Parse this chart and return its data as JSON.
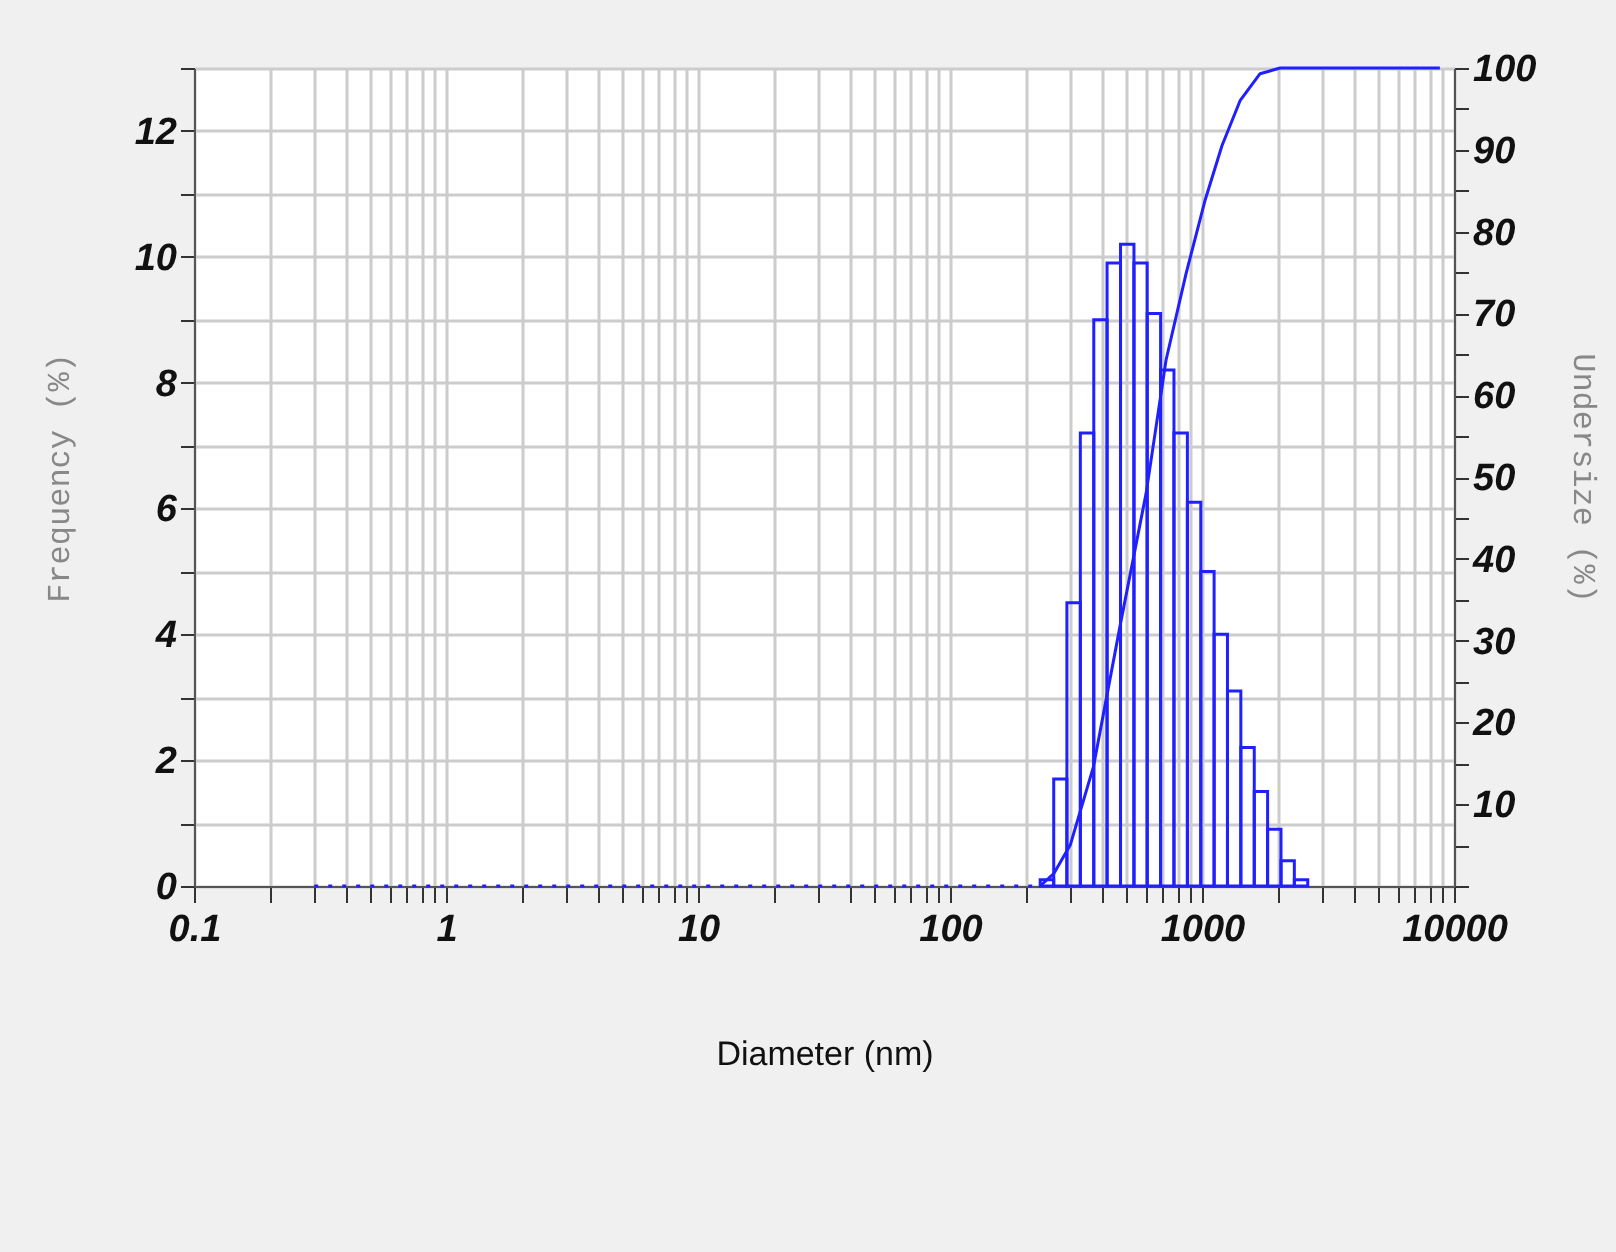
{
  "chart_data": {
    "type": "histogram",
    "xlabel": "Diameter (nm)",
    "ylabel": "Frequency (%)",
    "y2label": "Undersize (%)",
    "log": "x",
    "grid": true,
    "xlim": [
      0.1,
      10000
    ],
    "xticks": [
      0.1,
      {
        "value": 0.2,
        "label": null
      },
      {
        "value": 0.3,
        "label": null
      },
      {
        "value": 0.4,
        "label": null
      },
      {
        "value": 0.5,
        "label": null
      },
      {
        "value": 0.6,
        "label": null
      },
      {
        "value": 0.7,
        "label": null
      },
      {
        "value": 0.8,
        "label": null
      },
      {
        "value": 0.9,
        "label": null
      },
      1,
      {
        "value": 2,
        "label": null
      },
      {
        "value": 3,
        "label": null
      },
      {
        "value": 4,
        "label": null
      },
      {
        "value": 5,
        "label": null
      },
      {
        "value": 6,
        "label": null
      },
      {
        "value": 7,
        "label": null
      },
      {
        "value": 8,
        "label": null
      },
      {
        "value": 9,
        "label": null
      },
      10,
      {
        "value": 20,
        "label": null
      },
      {
        "value": 30,
        "label": null
      },
      {
        "value": 40,
        "label": null
      },
      {
        "value": 50,
        "label": null
      },
      {
        "value": 60,
        "label": null
      },
      {
        "value": 70,
        "label": null
      },
      {
        "value": 80,
        "label": null
      },
      {
        "value": 90,
        "label": null
      },
      100,
      {
        "value": 200,
        "label": null
      },
      {
        "value": 300,
        "label": null
      },
      {
        "value": 400,
        "label": null
      },
      {
        "value": 500,
        "label": null
      },
      {
        "value": 600,
        "label": null
      },
      {
        "value": 700,
        "label": null
      },
      {
        "value": 800,
        "label": null
      },
      {
        "value": 900,
        "label": null
      },
      1000,
      {
        "value": 2000,
        "label": null
      },
      {
        "value": 3000,
        "label": null
      },
      {
        "value": 4000,
        "label": null
      },
      {
        "value": 5000,
        "label": null
      },
      {
        "value": 6000,
        "label": null
      },
      {
        "value": 7000,
        "label": null
      },
      {
        "value": 8000,
        "label": null
      },
      {
        "value": 9000,
        "label": null
      },
      10000
    ],
    "ylim": [
      0,
      13
    ],
    "yticks": [
      0,
      {
        "value": 1,
        "label": null
      },
      2,
      {
        "value": 3,
        "label": null
      },
      4,
      {
        "value": 5,
        "label": null
      },
      6,
      {
        "value": 7,
        "label": null
      },
      8,
      {
        "value": 9,
        "label": null
      },
      10,
      {
        "value": 11,
        "label": null
      },
      12,
      {
        "value": 13,
        "label": null
      }
    ],
    "y2lim": [
      0,
      100
    ],
    "y2ticks": [
      {
        "value": 0,
        "label": null
      },
      {
        "value": 5,
        "label": null
      },
      10,
      {
        "value": 15,
        "label": null
      },
      20,
      {
        "value": 25,
        "label": null
      },
      30,
      {
        "value": 35,
        "label": null
      },
      40,
      {
        "value": 45,
        "label": null
      },
      50,
      {
        "value": 55,
        "label": null
      },
      60,
      {
        "value": 65,
        "label": null
      },
      70,
      {
        "value": 75,
        "label": null
      },
      80,
      {
        "value": 85,
        "label": null
      },
      90,
      {
        "value": 95,
        "label": null
      },
      100
    ],
    "series": [
      {
        "color": "#2020ff",
        "bins": [
          228,
          258,
          291,
          329,
          372,
          420,
          475,
          537,
          606,
          685,
          774,
          875,
          989,
          1117,
          1262,
          1426,
          1612,
          1821,
          2058,
          2325,
          2628
        ],
        "values": [
          0.1,
          1.7,
          4.5,
          7.2,
          9.0,
          9.9,
          10.2,
          9.9,
          9.1,
          8.2,
          7.2,
          6.1,
          5.0,
          4.0,
          3.1,
          2.2,
          1.5,
          0.9,
          0.4,
          0.1
        ]
      },
      {
        "type": "line",
        "axis": "y2",
        "color": "#2020ff",
        "line_style": "solid",
        "x": [
          228,
          258,
          300,
          371,
          473,
          600,
          720,
          865,
          1030,
          1200,
          1416,
          1700,
          2042,
          8790
        ],
        "values": [
          0,
          1.5,
          5,
          14.6,
          31.8,
          48,
          64.3,
          74.9,
          83.9,
          90.5,
          96,
          99.3,
          100,
          100
        ]
      },
      {
        "type": "line",
        "color": "#2020ff",
        "line_style": "dotted",
        "x": [
          0.3,
          228
        ],
        "values": [
          0,
          0
        ]
      }
    ]
  }
}
